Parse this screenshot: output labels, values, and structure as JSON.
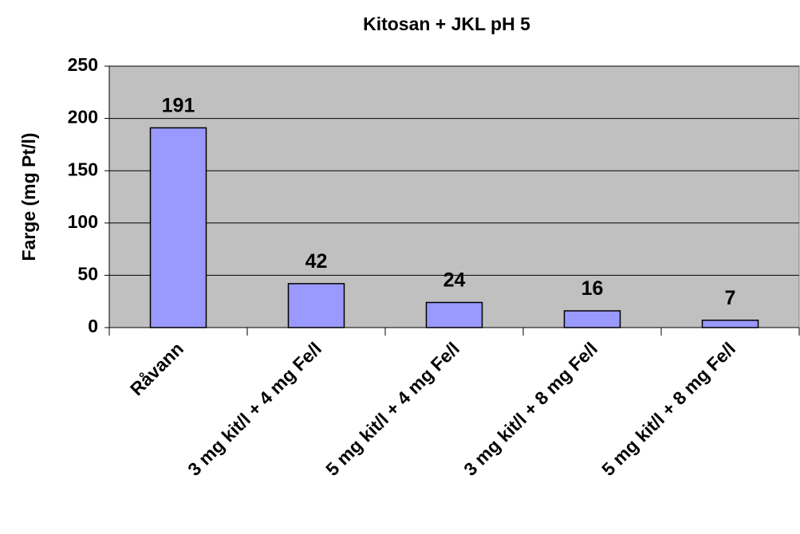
{
  "chart_data": {
    "type": "bar",
    "title": "Kitosan + JKL pH 5",
    "y_label": "Farge (mg Pt/l)",
    "categories": [
      "Råvann",
      "3 mg kit/l + 4 mg Fe/l",
      "5 mg kit/l + 4 mg Fe/l",
      "3 mg kit/l + 8 mg Fe/l",
      "5 mg kit/l + 8 mg Fe/l"
    ],
    "values": [
      191,
      42,
      24,
      16,
      7
    ],
    "color": "#9999ff",
    "ylim": [
      0,
      250
    ],
    "yticks": [
      0,
      50,
      100,
      150,
      200,
      250
    ],
    "grid": true
  }
}
